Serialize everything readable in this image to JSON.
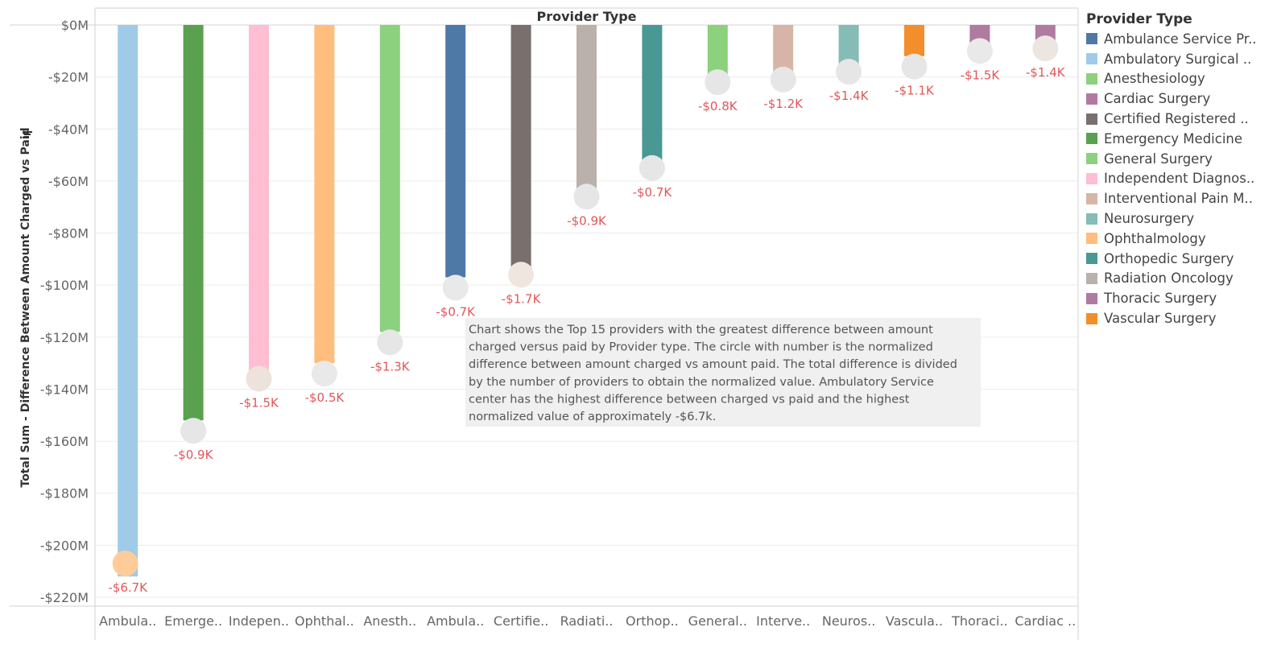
{
  "chart_data": {
    "type": "bar",
    "title": "Provider Type",
    "ylabel": "Total Sum  - Difference Between Amount Charged vs Paid",
    "ylabel_icon": "sort-icon",
    "ylim": [
      -220,
      0
    ],
    "yticks": [
      0,
      -20,
      -40,
      -60,
      -80,
      -100,
      -120,
      -140,
      -160,
      -180,
      -200,
      -220
    ],
    "ytick_labels": [
      "$0M",
      "-$20M",
      "-$40M",
      "-$60M",
      "-$80M",
      "-$100M",
      "-$120M",
      "-$140M",
      "-$160M",
      "-$180M",
      "-$200M",
      "-$220M"
    ],
    "grid": true,
    "legend_position": "right",
    "categories": [
      "Ambula..",
      "Emerge..",
      "Indepen..",
      "Ophthal..",
      "Anesth..",
      "Ambula..",
      "Certifie..",
      "Radiati..",
      "Orthop..",
      "General..",
      "Interve..",
      "Neuros..",
      "Vascula..",
      "Thoraci..",
      "Cardiac .."
    ],
    "values": [
      -212,
      -152,
      -133,
      -130,
      -118,
      -97,
      -93,
      -63,
      -52,
      -19,
      -18,
      -15,
      -12,
      -7,
      -6
    ],
    "markers": [
      -207,
      -156,
      -136,
      -134,
      -122,
      -101,
      -96,
      -66,
      -55,
      -22,
      -21,
      -18,
      -16,
      -10,
      -9
    ],
    "marker_labels": [
      "-$6.7K",
      "-$0.9K",
      "-$1.5K",
      "-$0.5K",
      "-$1.3K",
      "-$0.7K",
      "-$1.7K",
      "-$0.9K",
      "-$0.7K",
      "-$0.8K",
      "-$1.2K",
      "-$1.4K",
      "-$1.1K",
      "-$1.5K",
      "-$1.4K"
    ],
    "marker_colors": [
      "#ffcc99",
      "#e6e6e6",
      "#ede2dc",
      "#e9e9e9",
      "#e6e6e6",
      "#e9e9e9",
      "#f0e6e0",
      "#e6e6e6",
      "#e6e6e6",
      "#e6e6e6",
      "#e6e6e6",
      "#e6e6e6",
      "#e6e6e6",
      "#e9e9e9",
      "#ede5e0"
    ],
    "bar_colors": [
      "#a0cbe8",
      "#59a14f",
      "#ffbed2",
      "#ffbe7d",
      "#8cd17d",
      "#4e79a7",
      "#79706e",
      "#bab0ac",
      "#499894",
      "#8cd17d",
      "#d7b5a6",
      "#86bcb6",
      "#f28e2b",
      "#b07aa1",
      "#b07aa1"
    ],
    "label_color": "#e15759",
    "annotation": "Chart shows the Top 15 providers with the greatest difference between amount charged versus paid by Provider type.   The circle with number is the normalized difference between amount charged vs amount paid.  The total difference is divided by the number of providers to obtain the normalized value.    Ambulatory Service center has the highest difference between charged vs paid and the highest normalized value of approximately -$6.7k.",
    "legend": {
      "title": "Provider Type",
      "items": [
        {
          "label": "Ambulance Service Pr..",
          "color": "#4e79a7"
        },
        {
          "label": "Ambulatory Surgical ..",
          "color": "#a0cbe8"
        },
        {
          "label": "Anesthesiology",
          "color": "#8cd17d"
        },
        {
          "label": "Cardiac Surgery",
          "color": "#b07aa1"
        },
        {
          "label": "Certified Registered ..",
          "color": "#79706e"
        },
        {
          "label": "Emergency Medicine",
          "color": "#59a14f"
        },
        {
          "label": "General Surgery",
          "color": "#8cd17d"
        },
        {
          "label": "Independent Diagnos..",
          "color": "#ffbed2"
        },
        {
          "label": "Interventional Pain M..",
          "color": "#d7b5a6"
        },
        {
          "label": "Neurosurgery",
          "color": "#86bcb6"
        },
        {
          "label": "Ophthalmology",
          "color": "#ffbe7d"
        },
        {
          "label": "Orthopedic Surgery",
          "color": "#499894"
        },
        {
          "label": "Radiation Oncology",
          "color": "#bab0ac"
        },
        {
          "label": "Thoracic Surgery",
          "color": "#b07aa1"
        },
        {
          "label": "Vascular Surgery",
          "color": "#f28e2b"
        }
      ]
    }
  }
}
